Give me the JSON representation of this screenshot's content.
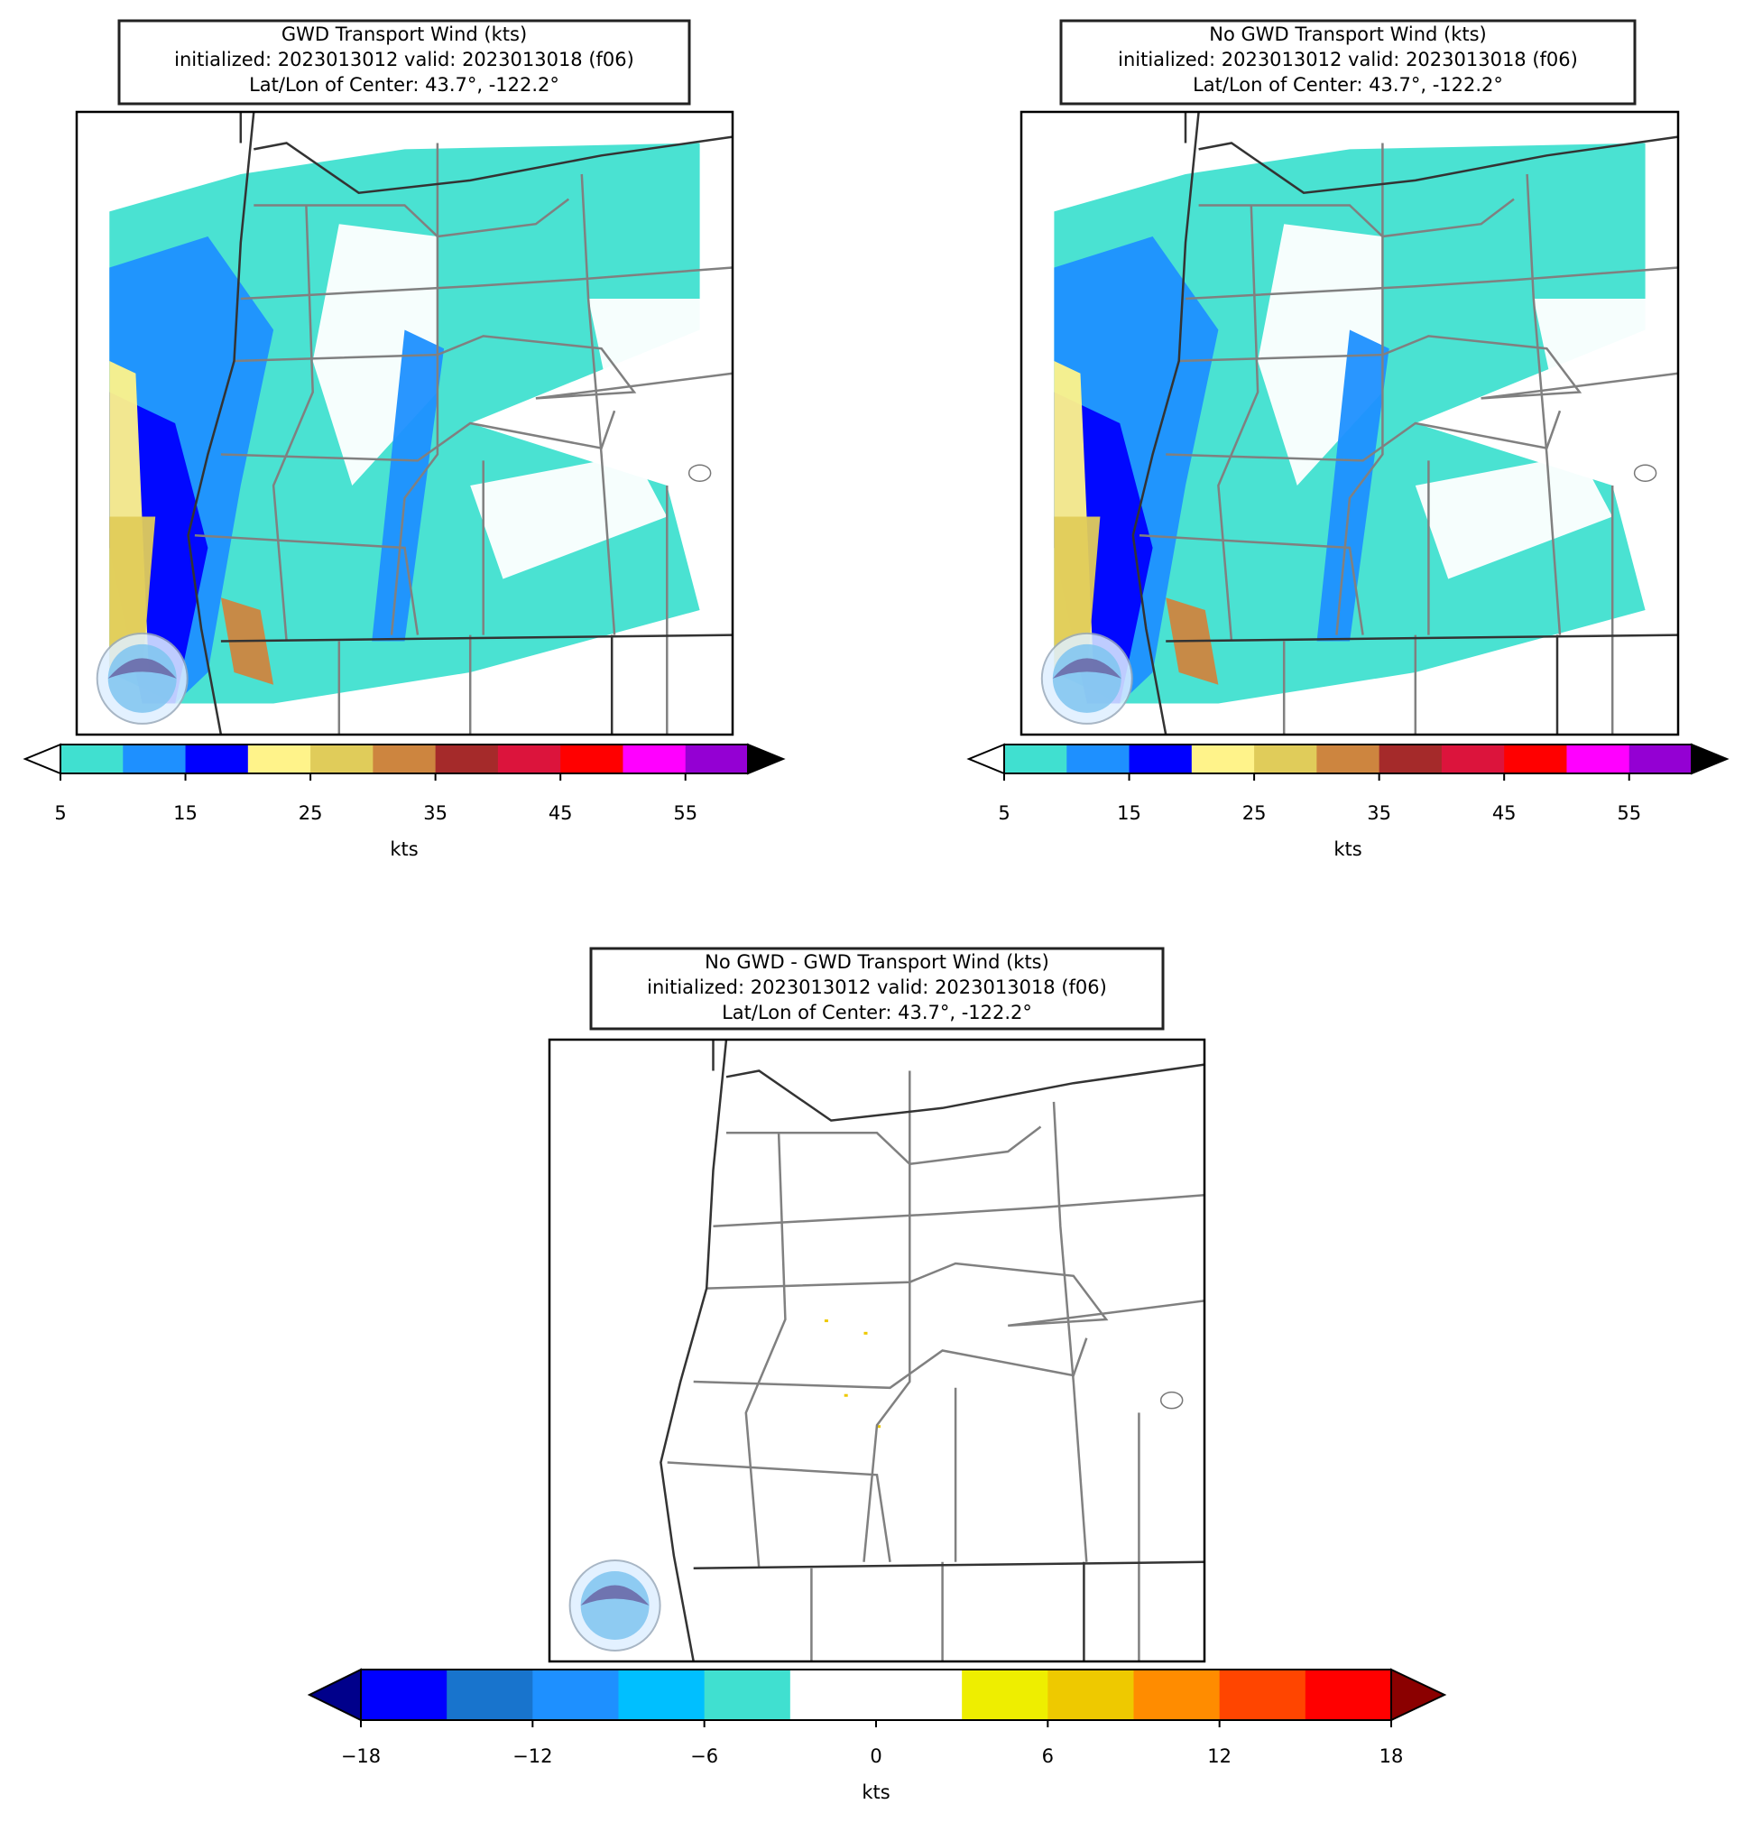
{
  "panels": [
    {
      "title": [
        "GWD Transport Wind (kts)",
        "initialized: 2023013012 valid: 2023013018 (f06)",
        "Lat/Lon of Center: 43.7°, -122.2°"
      ],
      "colorbar": {
        "levels": [
          5,
          10,
          15,
          20,
          25,
          30,
          35,
          40,
          45,
          50,
          55,
          60
        ],
        "colors": [
          "#40e0d0",
          "#1e90ff",
          "#0000ff",
          "#fff38a",
          "#e0cc5a",
          "#cd853f",
          "#a52a2a",
          "#dc143c",
          "#ff0000",
          "#ff00ff",
          "#9400d3"
        ],
        "under_color": "#ffffff",
        "over_color": "#000000",
        "ticks": [
          5,
          15,
          25,
          35,
          45,
          55
        ],
        "label": "kts"
      }
    },
    {
      "title": [
        "No GWD Transport Wind (kts)",
        "initialized: 2023013012 valid: 2023013018 (f06)",
        "Lat/Lon of Center: 43.7°, -122.2°"
      ],
      "colorbar": {
        "levels": [
          5,
          10,
          15,
          20,
          25,
          30,
          35,
          40,
          45,
          50,
          55,
          60
        ],
        "colors": [
          "#40e0d0",
          "#1e90ff",
          "#0000ff",
          "#fff38a",
          "#e0cc5a",
          "#cd853f",
          "#a52a2a",
          "#dc143c",
          "#ff0000",
          "#ff00ff",
          "#9400d3"
        ],
        "under_color": "#ffffff",
        "over_color": "#000000",
        "ticks": [
          5,
          15,
          25,
          35,
          45,
          55
        ],
        "label": "kts"
      }
    },
    {
      "title": [
        "No GWD - GWD Transport Wind (kts)",
        "initialized: 2023013012 valid: 2023013018 (f06)",
        "Lat/Lon of Center: 43.7°, -122.2°"
      ],
      "colorbar": {
        "levels": [
          -18,
          -15,
          -12,
          -9,
          -6,
          -3,
          0,
          3,
          6,
          9,
          12,
          15,
          18
        ],
        "colors": [
          "#0000ff",
          "#1874cd",
          "#1e90ff",
          "#00bfff",
          "#40e0d0",
          "#ffffff",
          "#ffffff",
          "#eeee00",
          "#eec900",
          "#ff8c00",
          "#ff4500",
          "#ff0000"
        ],
        "under_color": "#00008b",
        "over_color": "#8b0000",
        "ticks": [
          {
            "value": -18,
            "label": "−18"
          },
          {
            "value": -12,
            "label": "−12"
          },
          {
            "value": -6,
            "label": "−6"
          },
          0,
          6,
          12,
          18
        ],
        "label": "kts"
      }
    }
  ]
}
